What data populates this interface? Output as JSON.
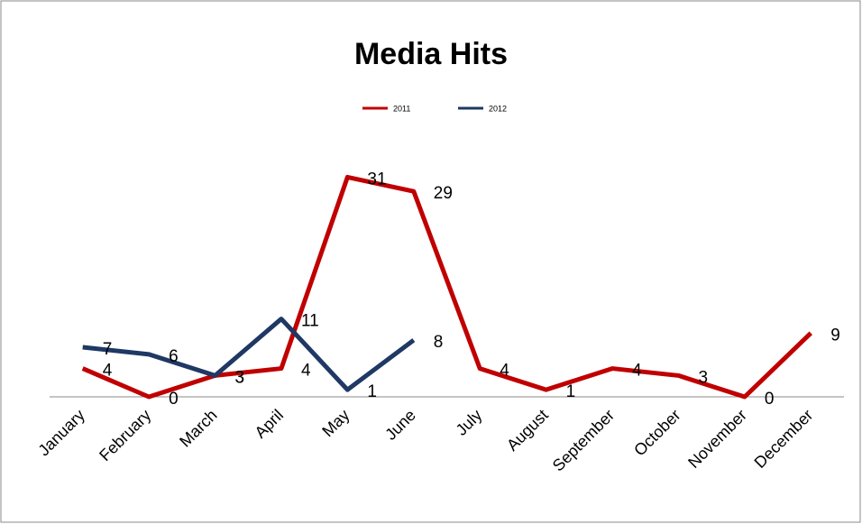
{
  "chart_data": {
    "type": "line",
    "title": "Media Hits",
    "categories": [
      "January",
      "February",
      "March",
      "April",
      "May",
      "June",
      "July",
      "August",
      "September",
      "October",
      "November",
      "December"
    ],
    "series": [
      {
        "name": "2011",
        "color": "#c00000",
        "values": [
          4,
          0,
          3,
          4,
          31,
          29,
          4,
          1,
          4,
          3,
          0,
          9
        ]
      },
      {
        "name": "2012",
        "color": "#1f3864",
        "values": [
          7,
          6,
          3,
          11,
          1,
          8,
          null,
          null,
          null,
          null,
          null,
          null
        ]
      }
    ],
    "ylim": [
      0,
      35
    ],
    "legend": "top",
    "data_labels": true
  }
}
